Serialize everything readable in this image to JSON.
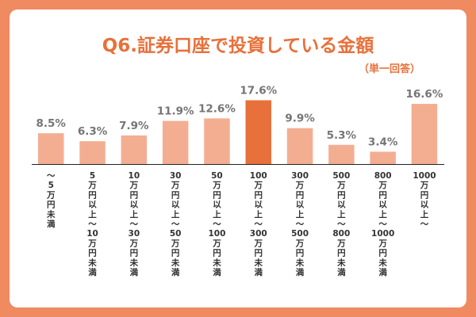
{
  "title": "Q6.証券口座で投資している金額",
  "subtitle": "（単一回答）",
  "colors": {
    "background": "#F08A60",
    "bar": "#F3AE92",
    "highlight": "#E8703A",
    "value_text": "#757575"
  },
  "chart_data": {
    "type": "bar",
    "title": "Q6.証券口座で投資している金額",
    "subtitle": "（単一回答）",
    "unit": "%",
    "categories": [
      [
        "～5",
        "万円未満"
      ],
      [
        "5",
        "万円以上～",
        "10",
        "万円未満"
      ],
      [
        "10",
        "万円以上～",
        "30",
        "万円未満"
      ],
      [
        "30",
        "万円以上～",
        "50",
        "万円未満"
      ],
      [
        "50",
        "万円以上～",
        "100",
        "万円未満"
      ],
      [
        "100",
        "万円以上～",
        "300",
        "万円未満"
      ],
      [
        "300",
        "万円以上～",
        "500",
        "万円未満"
      ],
      [
        "500",
        "万円以上～",
        "800",
        "万円未満"
      ],
      [
        "800",
        "万円以上～",
        "1000",
        "万円未満"
      ],
      [
        "1000",
        "万円以上～"
      ]
    ],
    "values": [
      8.5,
      6.3,
      7.9,
      11.9,
      12.6,
      17.6,
      9.9,
      5.3,
      3.4,
      16.6
    ],
    "value_labels": [
      "8.5%",
      "6.3%",
      "7.9%",
      "11.9%",
      "12.6%",
      "17.6%",
      "9.9%",
      "5.3%",
      "3.4%",
      "16.6%"
    ],
    "highlight_index": 5,
    "ylim": [
      0,
      17.6
    ],
    "xlabel": "",
    "ylabel": "",
    "grid": false,
    "legend": "none"
  }
}
